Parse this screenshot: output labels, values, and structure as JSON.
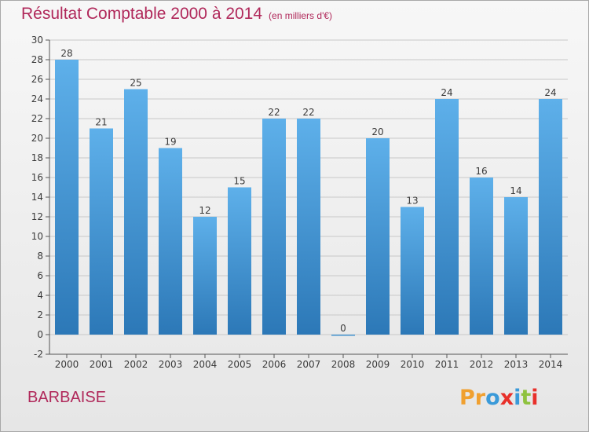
{
  "header": {
    "title": "Résultat Comptable 2000 à 2014",
    "unit": "(en milliers d'€)"
  },
  "footer": {
    "commune": "BARBAISE",
    "logo_text": "Proxiti",
    "logo_colors": [
      "#f0a030",
      "#f0a030",
      "#3a9ad9",
      "#e8302a",
      "#3a9ad9",
      "#8fc23f",
      "#e8302a"
    ]
  },
  "colors": {
    "bar_top": "#5eb0ea",
    "bar_bottom": "#2c78b7",
    "title": "#b0285a",
    "grid": "#c8c8c8"
  },
  "chart_data": {
    "type": "bar",
    "title": "Résultat Comptable 2000 à 2014",
    "subtitle": "(en milliers d'€)",
    "categories": [
      "2000",
      "2001",
      "2002",
      "2003",
      "2004",
      "2005",
      "2006",
      "2007",
      "2008",
      "2009",
      "2010",
      "2011",
      "2012",
      "2013",
      "2014"
    ],
    "values": [
      28,
      21,
      25,
      19,
      12,
      15,
      22,
      22,
      0,
      20,
      13,
      24,
      16,
      14,
      24
    ],
    "ylim": [
      -2,
      30
    ],
    "yticks": [
      -2,
      0,
      2,
      4,
      6,
      8,
      10,
      12,
      14,
      16,
      18,
      20,
      22,
      24,
      26,
      28,
      30
    ],
    "grid": true,
    "legend": "none"
  }
}
